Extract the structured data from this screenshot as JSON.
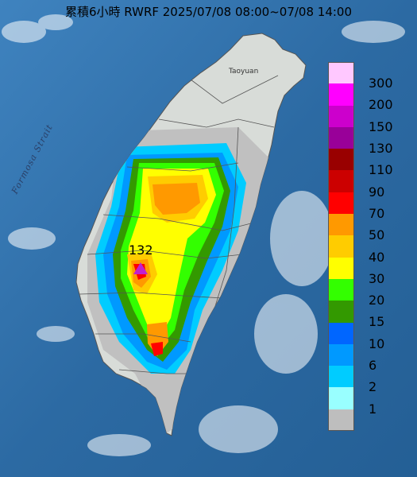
{
  "title": "累積6小時 RWRF 2025/07/08 08:00~07/08 14:00",
  "map": {
    "sea_label": "Formosa Strait",
    "city_label": "Taoyuan",
    "max_value": "132"
  },
  "legend": {
    "items": [
      {
        "label": "300",
        "color": "#ffc8ff"
      },
      {
        "label": "200",
        "color": "#ff00ff"
      },
      {
        "label": "150",
        "color": "#cc00cc"
      },
      {
        "label": "130",
        "color": "#990099"
      },
      {
        "label": "110",
        "color": "#990000"
      },
      {
        "label": "90",
        "color": "#cc0000"
      },
      {
        "label": "70",
        "color": "#ff0000"
      },
      {
        "label": "50",
        "color": "#ff9900"
      },
      {
        "label": "40",
        "color": "#ffcc00"
      },
      {
        "label": "30",
        "color": "#ffff00"
      },
      {
        "label": "20",
        "color": "#33ff00"
      },
      {
        "label": "15",
        "color": "#339900"
      },
      {
        "label": "10",
        "color": "#0066ff"
      },
      {
        "label": "6",
        "color": "#0099ff"
      },
      {
        "label": "2",
        "color": "#00ccff"
      },
      {
        "label": "1",
        "color": "#99ffff"
      },
      {
        "label": "",
        "color": "#bebebe"
      }
    ]
  }
}
